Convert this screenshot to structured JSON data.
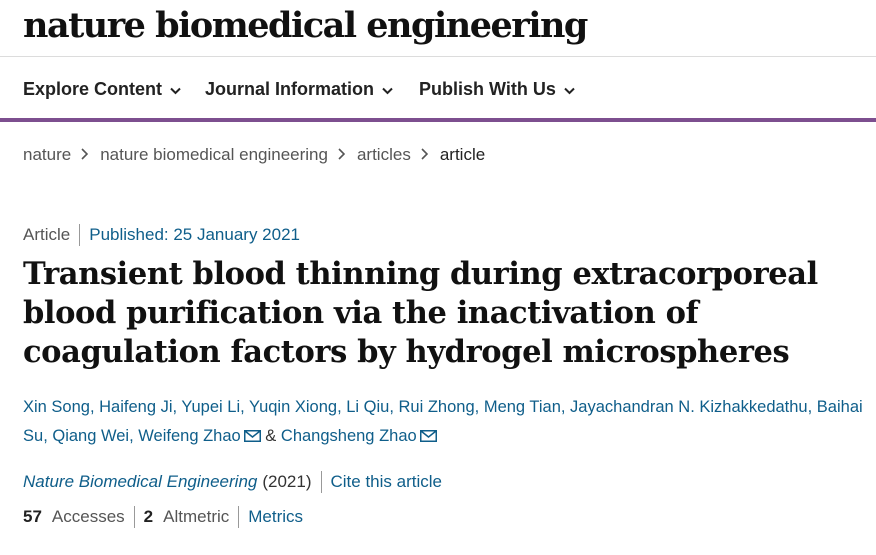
{
  "header": {
    "logo_text": "nature biomedical engineering"
  },
  "nav": {
    "items": [
      {
        "label": "Explore Content"
      },
      {
        "label": "Journal Information"
      },
      {
        "label": "Publish With Us"
      }
    ],
    "accent_color": "#7d4f8f"
  },
  "breadcrumb": {
    "items": [
      {
        "label": "nature"
      },
      {
        "label": "nature biomedical engineering"
      },
      {
        "label": "articles"
      }
    ],
    "current": "article"
  },
  "article": {
    "type": "Article",
    "published": "Published: 25 January 2021",
    "title": "Transient blood thinning during extracorporeal blood purification via the inactivation of coagulation factors by hydrogel microspheres",
    "authors": [
      {
        "name": "Xin Song",
        "sep": ", "
      },
      {
        "name": "Haifeng Ji",
        "sep": ", "
      },
      {
        "name": "Yupei Li",
        "sep": ", "
      },
      {
        "name": "Yuqin Xiong",
        "sep": ", "
      },
      {
        "name": "Li Qiu",
        "sep": ", "
      },
      {
        "name": "Rui Zhong",
        "sep": ", "
      },
      {
        "name": "Meng Tian",
        "sep": ", "
      },
      {
        "name": "Jayachandran N. Kizhakkedathu",
        "sep": ", "
      },
      {
        "name": "Baihai Su",
        "sep": ", "
      },
      {
        "name": "Qiang Wei",
        "sep": ", "
      },
      {
        "name": "Weifeng Zhao",
        "sep": ""
      },
      {
        "name": "Changsheng Zhao",
        "sep": ""
      }
    ],
    "author_conjunction": "&",
    "journal": "Nature Biomedical Engineering",
    "year": "(2021)",
    "cite_label": "Cite this article",
    "accesses_count": "57",
    "accesses_label": "Accesses",
    "altmetric_count": "2",
    "altmetric_label": "Altmetric",
    "metrics_label": "Metrics"
  },
  "colors": {
    "link": "#0f5e8a",
    "text": "#222222",
    "muted": "#555555"
  }
}
